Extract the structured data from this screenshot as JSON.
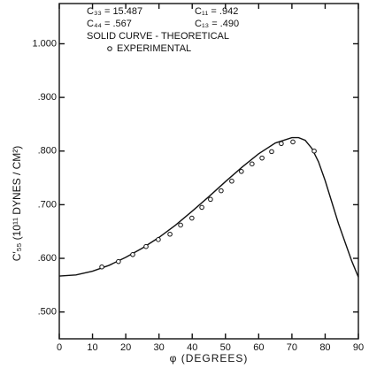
{
  "chart_data": {
    "type": "line",
    "xlabel": "φ (DEGREES)",
    "ylabel": "C′₅₅ (10¹¹ DYNES / CM²)",
    "annotations": [
      "C₃₃ = 15.487",
      "C₁₁ = .942",
      "C₄₄ = .567",
      "C₁₃ = .490"
    ],
    "xlim": [
      0,
      90
    ],
    "xticks": [
      0,
      10,
      20,
      30,
      40,
      50,
      60,
      70,
      80,
      90
    ],
    "ylim": [
      0.45,
      1.075
    ],
    "yticks": [
      {
        "value": 0.5,
        "label": ".500"
      },
      {
        "value": 0.6,
        "label": ".600"
      },
      {
        "value": 0.7,
        "label": ".700"
      },
      {
        "value": 0.8,
        "label": ".800"
      },
      {
        "value": 0.9,
        "label": ".900"
      },
      {
        "value": 1.0,
        "label": "1.000"
      }
    ],
    "series": [
      {
        "name": "SOLID CURVE - THEORETICAL",
        "color": "#111111",
        "style": "line",
        "x": [
          0,
          5,
          10,
          15,
          20,
          25,
          30,
          35,
          40,
          45,
          50,
          55,
          60,
          65,
          70,
          72,
          74,
          76,
          78,
          80,
          82,
          84,
          86,
          88,
          90
        ],
        "values": [
          0.567,
          0.569,
          0.576,
          0.587,
          0.602,
          0.619,
          0.639,
          0.662,
          0.688,
          0.715,
          0.743,
          0.77,
          0.795,
          0.815,
          0.825,
          0.825,
          0.82,
          0.805,
          0.78,
          0.745,
          0.705,
          0.665,
          0.63,
          0.595,
          0.565
        ]
      },
      {
        "name": "EXPERIMENTAL",
        "color": "#111111",
        "style": "points",
        "x": [
          12.8,
          17.8,
          22.1,
          26.1,
          29.8,
          33.3,
          36.5,
          39.9,
          42.9,
          45.5,
          48.7,
          51.9,
          54.8,
          58,
          61,
          63.9,
          66.8,
          70.3,
          76.7
        ],
        "values": [
          0.584,
          0.594,
          0.607,
          0.622,
          0.635,
          0.645,
          0.662,
          0.675,
          0.695,
          0.71,
          0.726,
          0.744,
          0.762,
          0.776,
          0.787,
          0.799,
          0.814,
          0.817,
          0.8
        ]
      }
    ]
  }
}
